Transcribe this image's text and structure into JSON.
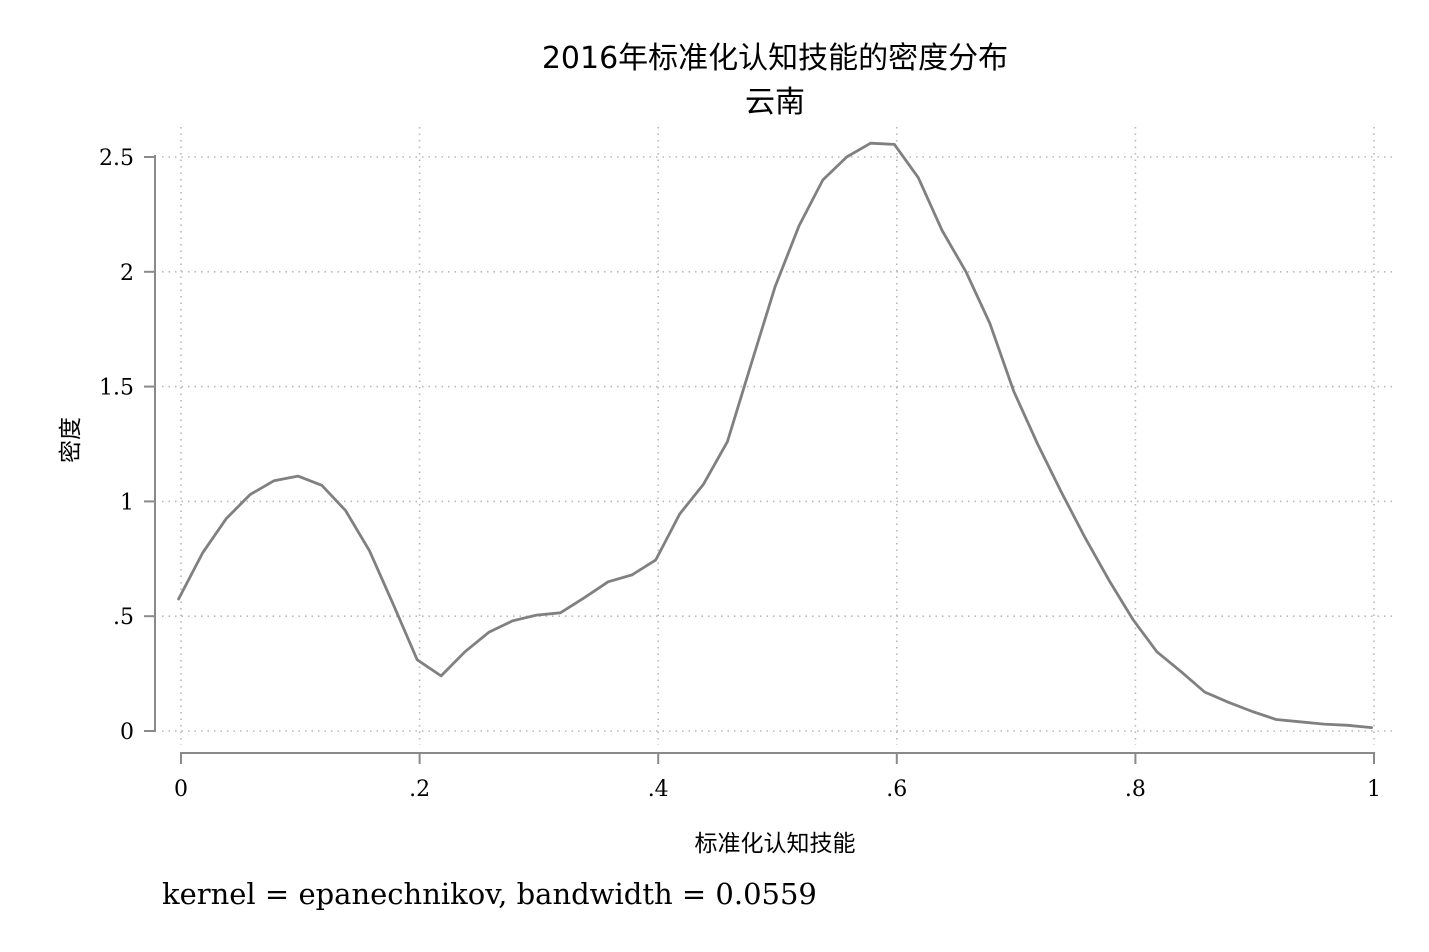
{
  "chart_data": {
    "type": "line",
    "title": "2016年标准化认知技能的密度分布",
    "subtitle": "云南",
    "xlabel": "标准化认知技能",
    "ylabel": "密度",
    "note": "kernel = epanechnikov, bandwidth = 0.0559",
    "xlim": [
      0,
      1
    ],
    "ylim": [
      0,
      2.5
    ],
    "x_ticks": [
      {
        "value": 0,
        "label": "0"
      },
      {
        "value": 0.2,
        "label": ".2"
      },
      {
        "value": 0.4,
        "label": ".4"
      },
      {
        "value": 0.6,
        "label": ".6"
      },
      {
        "value": 0.8,
        "label": ".8"
      },
      {
        "value": 1,
        "label": "1"
      }
    ],
    "y_ticks": [
      {
        "value": 0,
        "label": "0"
      },
      {
        "value": 0.5,
        "label": ".5"
      },
      {
        "value": 1,
        "label": "1"
      },
      {
        "value": 1.5,
        "label": "1.5"
      },
      {
        "value": 2,
        "label": "2"
      },
      {
        "value": 2.5,
        "label": "2.5"
      }
    ],
    "grid": true,
    "line_color": "#808080",
    "series": [
      {
        "x": [
          -0.002,
          0.018,
          0.038,
          0.058,
          0.078,
          0.098,
          0.118,
          0.138,
          0.158,
          0.178,
          0.198,
          0.218,
          0.238,
          0.258,
          0.278,
          0.298,
          0.318,
          0.338,
          0.358,
          0.378,
          0.398,
          0.418,
          0.438,
          0.458,
          0.478,
          0.498,
          0.518,
          0.538,
          0.558,
          0.578,
          0.598,
          0.618,
          0.638,
          0.658,
          0.678,
          0.698,
          0.718,
          0.738,
          0.758,
          0.778,
          0.798,
          0.818,
          0.838,
          0.858,
          0.878,
          0.898,
          0.918,
          0.938,
          0.958,
          0.978,
          0.998
        ],
        "values": [
          0.575,
          0.775,
          0.925,
          1.03,
          1.09,
          1.11,
          1.07,
          0.96,
          0.785,
          0.55,
          0.31,
          0.24,
          0.345,
          0.43,
          0.48,
          0.505,
          0.515,
          0.58,
          0.65,
          0.68,
          0.745,
          0.945,
          1.075,
          1.26,
          1.6,
          1.935,
          2.2,
          2.4,
          2.5,
          2.56,
          2.555,
          2.41,
          2.18,
          2.0,
          1.775,
          1.48,
          1.25,
          1.04,
          0.84,
          0.655,
          0.485,
          0.345,
          0.26,
          0.17,
          0.125,
          0.085,
          0.05,
          0.04,
          0.03,
          0.025,
          0.015
        ]
      }
    ]
  }
}
